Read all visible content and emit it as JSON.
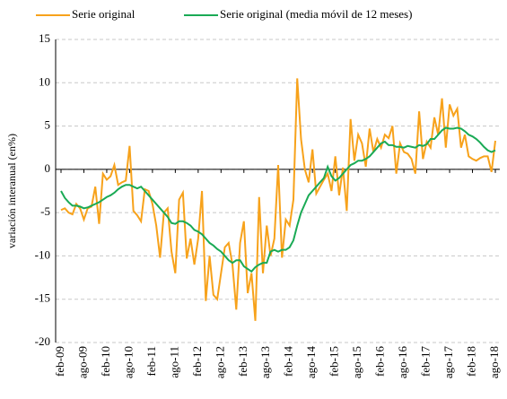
{
  "chart_data": {
    "type": "line",
    "y_label": "variación interanual (en%)",
    "categories": [
      "feb-09",
      null,
      null,
      null,
      null,
      null,
      "ago-09",
      null,
      null,
      null,
      null,
      null,
      "feb-10",
      null,
      null,
      null,
      null,
      null,
      "ago-10",
      null,
      null,
      null,
      null,
      null,
      "feb-11",
      null,
      null,
      null,
      null,
      null,
      "ago-11",
      null,
      null,
      null,
      null,
      null,
      "feb-12",
      null,
      null,
      null,
      null,
      null,
      "ago-12",
      null,
      null,
      null,
      null,
      null,
      "feb-13",
      null,
      null,
      null,
      null,
      null,
      "ago-13",
      null,
      null,
      null,
      null,
      null,
      "feb-14",
      null,
      null,
      null,
      null,
      null,
      "ago-14",
      null,
      null,
      null,
      null,
      null,
      "feb-15",
      null,
      null,
      null,
      null,
      null,
      "ago-15",
      null,
      null,
      null,
      null,
      null,
      "feb-16",
      null,
      null,
      null,
      null,
      null,
      "ago-16",
      null,
      null,
      null,
      null,
      null,
      "feb-17",
      null,
      null,
      null,
      null,
      null,
      "ago-17",
      null,
      null,
      null,
      null,
      null,
      "feb-18",
      null,
      null,
      null,
      null,
      null,
      "ago-18"
    ],
    "series": [
      {
        "name": "Serie original",
        "color": "#f7a21b",
        "values": [
          -4.7,
          -4.5,
          -5.0,
          -5.2,
          -4.0,
          -4.5,
          -5.8,
          -4.5,
          -4.3,
          -2.0,
          -6.3,
          -0.5,
          -1.2,
          -0.8,
          0.5,
          -1.8,
          -1.5,
          -1.3,
          2.7,
          -4.8,
          -5.3,
          -6.0,
          -2.3,
          -2.5,
          -4.0,
          -6.5,
          -10.2,
          -5.0,
          -4.5,
          -9.5,
          -12.0,
          -3.5,
          -2.7,
          -10.3,
          -8.0,
          -11.0,
          -8.0,
          -2.5,
          -15.2,
          -10.0,
          -14.5,
          -15.0,
          -12.0,
          -9.0,
          -8.5,
          -11.0,
          -16.2,
          -8.5,
          -6.0,
          -14.3,
          -12.0,
          -17.5,
          -3.2,
          -12.0,
          -6.5,
          -10.0,
          -8.0,
          0.5,
          -10.2,
          -5.8,
          -6.5,
          -3.5,
          10.5,
          3.5,
          0.0,
          -1.5,
          2.3,
          -2.8,
          -2.0,
          -1.2,
          -0.5,
          -2.5,
          1.5,
          -3.0,
          0.2,
          -4.8,
          5.8,
          1.0,
          4.0,
          3.0,
          0.3,
          4.7,
          2.0,
          3.5,
          2.5,
          4.0,
          3.6,
          5.0,
          -0.5,
          3.0,
          2.0,
          1.8,
          1.2,
          -0.5,
          6.7,
          1.2,
          3.2,
          2.5,
          6.0,
          4.0,
          8.2,
          2.5,
          7.5,
          6.2,
          7.0,
          2.5,
          4.0,
          1.5,
          1.2,
          1.0,
          1.3,
          1.5,
          1.5,
          -0.3,
          3.3
        ]
      },
      {
        "name": "Serie original (media móvil de 12 meses)",
        "color": "#1aaa55",
        "values": [
          -2.5,
          -3.3,
          -3.8,
          -4.2,
          -4.2,
          -4.3,
          -4.5,
          -4.4,
          -4.2,
          -4.0,
          -3.8,
          -3.5,
          -3.2,
          -3.0,
          -2.7,
          -2.3,
          -2.0,
          -1.8,
          -1.8,
          -2.0,
          -2.2,
          -2.0,
          -2.5,
          -3.0,
          -3.5,
          -4.0,
          -4.5,
          -5.0,
          -5.5,
          -6.2,
          -6.3,
          -6.0,
          -6.0,
          -6.2,
          -6.5,
          -7.0,
          -7.2,
          -7.5,
          -8.0,
          -8.5,
          -8.8,
          -9.2,
          -9.5,
          -10.0,
          -10.5,
          -10.8,
          -10.5,
          -10.5,
          -11.2,
          -11.5,
          -11.8,
          -11.3,
          -11.0,
          -10.8,
          -10.8,
          -9.5,
          -9.3,
          -9.5,
          -9.3,
          -9.3,
          -9.0,
          -8.2,
          -6.5,
          -5.0,
          -4.0,
          -3.0,
          -2.5,
          -2.0,
          -1.5,
          -1.0,
          0.3,
          -0.8,
          -1.3,
          -1.0,
          -0.5,
          0.0,
          0.5,
          0.7,
          1.0,
          1.0,
          1.2,
          1.5,
          2.0,
          2.5,
          3.0,
          3.2,
          2.8,
          2.8,
          2.6,
          2.6,
          2.5,
          2.7,
          2.6,
          2.5,
          2.8,
          2.7,
          2.9,
          3.5,
          3.5,
          4.0,
          4.5,
          4.8,
          4.7,
          4.7,
          4.8,
          4.7,
          4.4,
          4.0,
          3.8,
          3.5,
          3.1,
          2.6,
          2.2,
          2.0,
          2.2
        ]
      }
    ],
    "ylim": [
      -20,
      15
    ],
    "yticks": [
      15,
      10,
      5,
      0,
      -5,
      -10,
      -15,
      -20
    ],
    "grid": true
  }
}
